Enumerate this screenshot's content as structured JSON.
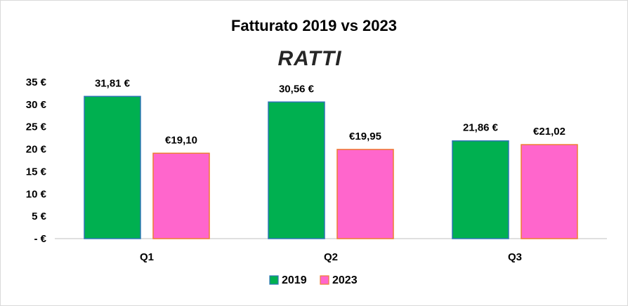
{
  "logo_text": "RATTI",
  "chart_data": {
    "type": "bar",
    "title": "Fatturato  2019 vs 2023",
    "xlabel": "",
    "ylabel": "",
    "categories": [
      "Q1",
      "Q2",
      "Q3"
    ],
    "ylim": [
      0,
      35
    ],
    "yticks": [
      {
        "value": 35,
        "label": "35 €"
      },
      {
        "value": 30,
        "label": "30 €"
      },
      {
        "value": 25,
        "label": "25 €"
      },
      {
        "value": 20,
        "label": "20 €"
      },
      {
        "value": 15,
        "label": "15 €"
      },
      {
        "value": 10,
        "label": "10 €"
      },
      {
        "value": 5,
        "label": "5 €"
      },
      {
        "value": 0,
        "label": "- €"
      }
    ],
    "series": [
      {
        "name": "2019",
        "color": "#00b050",
        "stroke": "#2e75b6",
        "values": [
          31.81,
          30.56,
          21.86
        ],
        "labels": [
          "31,81 €",
          "30,56 €",
          "21,86 €"
        ]
      },
      {
        "name": "2023",
        "color": "#ff66cc",
        "stroke": "#ed7d31",
        "values": [
          19.1,
          19.95,
          21.02
        ],
        "labels": [
          "€19,10",
          "€19,95",
          "€21,02"
        ]
      }
    ],
    "grid": false,
    "legend": "bottom"
  }
}
